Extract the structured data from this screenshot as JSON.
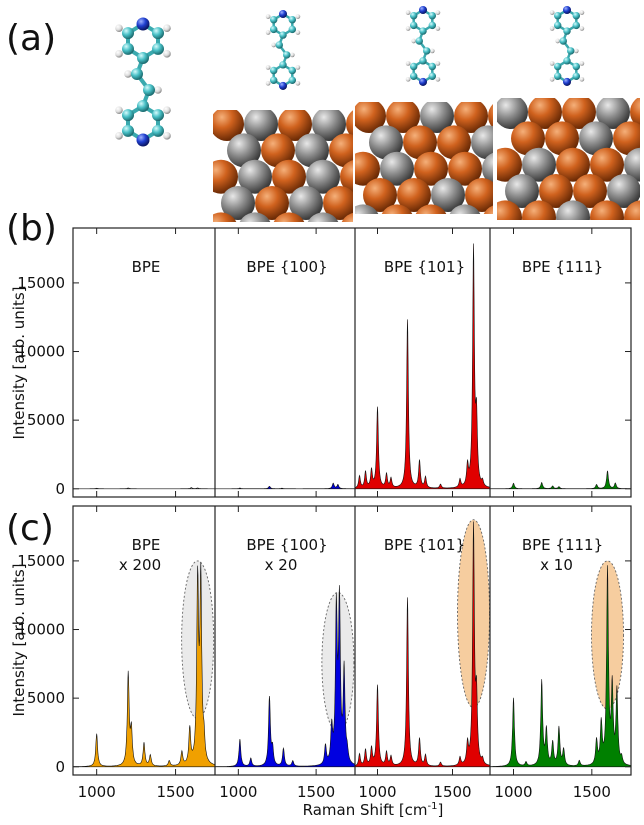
{
  "panel_labels": [
    "(a)",
    "(b)",
    "(c)"
  ],
  "axes": {
    "ylabel": "Intensity [arb. units]",
    "xlabel_main": "Raman Shift [cm",
    "xlabel_sup": "-1",
    "xlabel_end": "]",
    "x_ticks": [
      "1000",
      "1500"
    ],
    "y_ticks": [
      "0",
      "5000",
      "10000",
      "15000"
    ]
  },
  "colors": {
    "atom_carbon": "#4fbfc4",
    "atom_nitrogen": "#1f3fd0",
    "atom_hydrogen": "#e6e6e6",
    "metal_copper": "#c8581a",
    "metal_silver": "#8a8a8a",
    "ellipse_gray": "#d8d8d8",
    "ellipse_orange": "#f5c48e"
  },
  "structure_models": [
    "BPE",
    "BPE {100}",
    "BPE {101}",
    "BPE {111}"
  ],
  "chart_data": [
    {
      "type": "area",
      "panel": "(b)",
      "xlim": [
        850,
        1750
      ],
      "ylim": [
        -600,
        19000
      ],
      "ylabel": "Intensity [arb. units]",
      "grid": false,
      "subplots": [
        {
          "title_line1": "BPE",
          "title_line2": "",
          "color": "#b0b0b0",
          "peaks": [
            [
              1000,
              40
            ],
            [
              1200,
              60
            ],
            [
              1600,
              80
            ],
            [
              1640,
              60
            ]
          ]
        },
        {
          "title_line1": "BPE {100}",
          "title_line2": "",
          "color": "#0000d8",
          "peaks": [
            [
              1010,
              50
            ],
            [
              1200,
              180
            ],
            [
              1280,
              40
            ],
            [
              1610,
              400
            ],
            [
              1640,
              300
            ]
          ]
        },
        {
          "title_line1": "BPE {101}",
          "title_line2": "",
          "color": "#e00000",
          "peaks": [
            [
              880,
              900
            ],
            [
              920,
              1200
            ],
            [
              960,
              1300
            ],
            [
              1000,
              5900
            ],
            [
              1060,
              1000
            ],
            [
              1090,
              700
            ],
            [
              1200,
              12300
            ],
            [
              1280,
              2000
            ],
            [
              1320,
              800
            ],
            [
              1420,
              300
            ],
            [
              1550,
              600
            ],
            [
              1600,
              1500
            ],
            [
              1640,
              17300
            ],
            [
              1660,
              4700
            ],
            [
              1700,
              400
            ]
          ]
        },
        {
          "title_line1": "BPE {111}",
          "title_line2": "",
          "color": "#008000",
          "peaks": [
            [
              1000,
              400
            ],
            [
              1180,
              450
            ],
            [
              1250,
              200
            ],
            [
              1290,
              150
            ],
            [
              1530,
              300
            ],
            [
              1600,
              1300
            ],
            [
              1650,
              400
            ]
          ]
        }
      ]
    },
    {
      "type": "area",
      "panel": "(c)",
      "xlim": [
        850,
        1750
      ],
      "ylim": [
        -600,
        19000
      ],
      "xlabel": "Raman Shift [cm-1]",
      "ylabel": "Intensity [arb. units]",
      "grid": false,
      "subplots": [
        {
          "title_line1": "BPE",
          "title_line2": "x 200",
          "color": "#f0a000",
          "highlight": {
            "x": 1640,
            "y_low": 3500,
            "y_high": 15000,
            "color": "gray"
          },
          "peaks": [
            [
              1000,
              2400
            ],
            [
              1200,
              6700
            ],
            [
              1220,
              2500
            ],
            [
              1300,
              1700
            ],
            [
              1340,
              800
            ],
            [
              1460,
              400
            ],
            [
              1540,
              1000
            ],
            [
              1590,
              2600
            ],
            [
              1640,
              13100
            ],
            [
              1660,
              13300
            ],
            [
              1680,
              1500
            ]
          ]
        },
        {
          "title_line1": "BPE {100}",
          "title_line2": "x 20",
          "color": "#0000e0",
          "highlight": {
            "x": 1640,
            "y_low": 2500,
            "y_high": 12700,
            "color": "gray"
          },
          "peaks": [
            [
              1010,
              2000
            ],
            [
              1080,
              600
            ],
            [
              1200,
              5000
            ],
            [
              1220,
              1200
            ],
            [
              1290,
              1300
            ],
            [
              1350,
              400
            ],
            [
              1560,
              1400
            ],
            [
              1600,
              2600
            ],
            [
              1630,
              11100
            ],
            [
              1650,
              11600
            ],
            [
              1680,
              6800
            ],
            [
              1700,
              800
            ]
          ]
        },
        {
          "title_line1": "BPE {101}",
          "title_line2": "",
          "color": "#e00000",
          "highlight": {
            "x": 1640,
            "y_low": 4300,
            "y_high": 18000,
            "color": "orange"
          },
          "peaks": [
            [
              880,
              900
            ],
            [
              920,
              1200
            ],
            [
              960,
              1300
            ],
            [
              1000,
              5900
            ],
            [
              1060,
              1000
            ],
            [
              1090,
              700
            ],
            [
              1200,
              12300
            ],
            [
              1280,
              2000
            ],
            [
              1320,
              800
            ],
            [
              1420,
              300
            ],
            [
              1550,
              600
            ],
            [
              1600,
              1500
            ],
            [
              1640,
              17300
            ],
            [
              1660,
              4700
            ],
            [
              1700,
              400
            ]
          ]
        },
        {
          "title_line1": "BPE {111}",
          "title_line2": "x 10",
          "color": "#008000",
          "highlight": {
            "x": 1600,
            "y_low": 4200,
            "y_high": 15000,
            "color": "orange"
          },
          "peaks": [
            [
              1000,
              5000
            ],
            [
              1080,
              300
            ],
            [
              1180,
              6200
            ],
            [
              1210,
              2600
            ],
            [
              1250,
              1700
            ],
            [
              1290,
              2800
            ],
            [
              1320,
              1200
            ],
            [
              1420,
              400
            ],
            [
              1530,
              1800
            ],
            [
              1560,
              3000
            ],
            [
              1600,
              14200
            ],
            [
              1630,
              5600
            ],
            [
              1660,
              5400
            ],
            [
              1690,
              500
            ]
          ]
        }
      ]
    }
  ]
}
